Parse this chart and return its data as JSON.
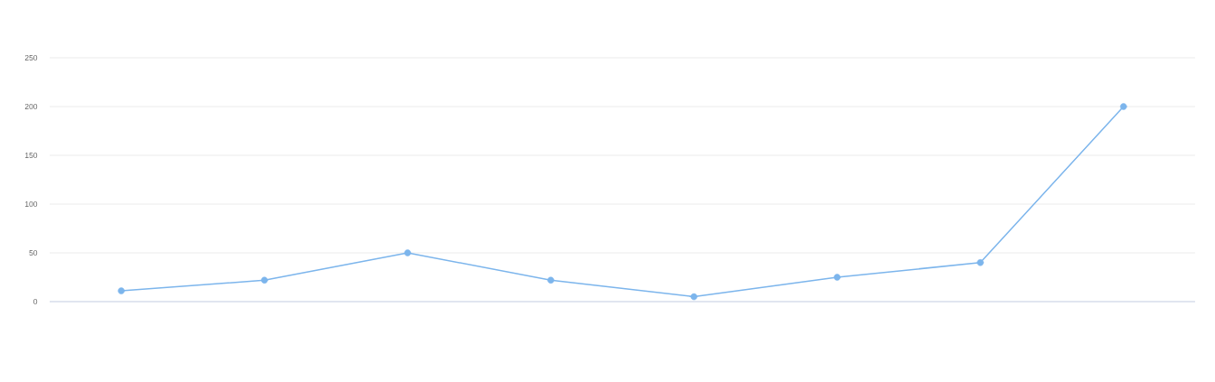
{
  "chart_data": {
    "type": "line",
    "categories": [
      null,
      null,
      null,
      null,
      null,
      null,
      null,
      null
    ],
    "series": [
      {
        "color": "#7cb5ec",
        "values": [
          11,
          22,
          50,
          22,
          5,
          25,
          40,
          200
        ]
      }
    ],
    "ylim": [
      0,
      250
    ],
    "yticks": [
      0,
      50,
      100,
      150,
      200,
      250
    ],
    "grid": "y",
    "marker": "circle",
    "line_style": "solid"
  }
}
